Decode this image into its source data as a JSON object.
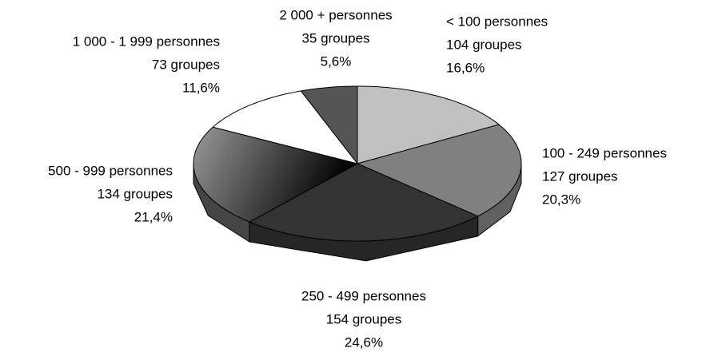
{
  "chart_data": {
    "type": "pie3d",
    "categories": [
      "< 100 personnes",
      "100 - 249 personnes",
      "250 - 499 personnes",
      "500 - 999 personnes",
      "1 000 - 1 999 personnes",
      "2 000 + personnes"
    ],
    "values": [
      16.6,
      20.3,
      24.6,
      21.4,
      11.6,
      5.6
    ],
    "value_labels": [
      "16,6%",
      "20,3%",
      "24,6%",
      "21,4%",
      "11,6%",
      "5,6%"
    ],
    "counts": [
      104,
      127,
      154,
      134,
      73,
      35
    ],
    "count_labels": [
      "104 groupes",
      "127 groupes",
      "154 groupes",
      "134 groupes",
      "73 groupes",
      "35 groupes"
    ],
    "colors": [
      "#c0c0c0",
      "#808080",
      "#333333",
      "#9a9a9a",
      "#ffffff",
      "#555555"
    ],
    "gradient_to": [
      null,
      null,
      null,
      "#000000",
      null,
      null
    ]
  }
}
